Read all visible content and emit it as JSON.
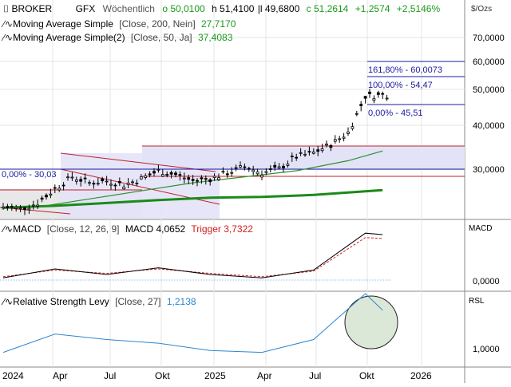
{
  "header": {
    "broker": "BROKER",
    "symbol": "GFX",
    "interval": "Wöchentlich",
    "open": "o 50,0100",
    "high": "h 51,4100",
    "low": "l 49,6800",
    "close": "c 51,2614",
    "change": "+1,2574",
    "change_pct": "+2,5146%",
    "unit": "$/Ozs"
  },
  "indicators": {
    "ma200_label": "Moving Average Simple",
    "ma200_params": "[Close, 200, Nein]",
    "ma200_value": "27,7170",
    "ma50_label": "Moving Average Simple(2)",
    "ma50_params": "[Close, 50, Ja]",
    "ma50_value": "37,4083"
  },
  "fib": {
    "l161": "161,80% - 60,0073",
    "l100": "100,00% - 54,47",
    "l0": "0,00% - 45,51",
    "left0": "0,00% - 30,03"
  },
  "macd": {
    "label": "MACD",
    "params": "[Close, 12, 26, 9]",
    "value_label": "MACD 4,0652",
    "trigger_label": "Trigger 3,7322",
    "axis_title": "MACD",
    "axis_zero": "0,0000"
  },
  "rsl": {
    "label": "Relative Strength Levy",
    "params": "[Close, 27]",
    "value": "1,2138",
    "axis_title": "RSL",
    "axis_one": "1,0000"
  },
  "colors": {
    "price": "#000000",
    "ma200": "#1a8a1a",
    "ma50": "#2f8f2f",
    "fib_line": "#1a1aa0",
    "channel": "#c0202a",
    "zone_fill": "#e3e3f7",
    "trigger": "#d02020",
    "rsl": "#2b86d0",
    "up_text": "#1a9a1a"
  },
  "chart_data": {
    "type": "line",
    "title": "GFX Wöchentlich",
    "x_ticks": [
      "2024",
      "Apr",
      "Jul",
      "Okt",
      "2025",
      "Apr",
      "Jul",
      "Okt",
      "2026"
    ],
    "price_axis_ticks": [
      "70,0000",
      "60,0000",
      "50,0000",
      "40,0000",
      "30,0000"
    ],
    "ylim_price": [
      20,
      75
    ],
    "series": [
      {
        "name": "Close",
        "x": [
          "2024-01",
          "2024-02",
          "2024-03",
          "2024-04",
          "2024-05",
          "2024-06",
          "2024-07",
          "2024-08",
          "2024-09",
          "2024-10",
          "2024-11",
          "2024-12",
          "2025-01",
          "2025-02",
          "2025-03",
          "2025-04",
          "2025-05",
          "2025-06",
          "2025-07",
          "2025-08",
          "2025-09",
          "2025-10",
          "2025-11"
        ],
        "values": [
          23.5,
          23.0,
          24.5,
          28.0,
          31.0,
          29.5,
          30.0,
          29.0,
          30.5,
          32.5,
          31.5,
          30.0,
          30.5,
          32.0,
          33.5,
          32.0,
          33.0,
          36.0,
          37.0,
          39.0,
          42.0,
          51.0,
          51.3
        ]
      },
      {
        "name": "Moving Average Simple",
        "x": [
          "2024-01",
          "2024-04",
          "2024-07",
          "2024-10",
          "2025-01",
          "2025-04",
          "2025-07",
          "2025-10",
          "2025-11"
        ],
        "values": [
          23.3,
          23.8,
          24.5,
          25.2,
          25.8,
          26.0,
          26.5,
          27.4,
          27.7
        ]
      },
      {
        "name": "Moving Average Simple(2)",
        "x": [
          "2024-03",
          "2024-06",
          "2024-09",
          "2024-12",
          "2025-03",
          "2025-06",
          "2025-09",
          "2025-11"
        ],
        "values": [
          23.5,
          25.5,
          27.5,
          29.5,
          31.0,
          32.5,
          35.0,
          37.4
        ]
      }
    ],
    "macd": {
      "x": [
        "2024-01",
        "2024-04",
        "2024-07",
        "2024-10",
        "2025-01",
        "2025-04",
        "2025-07",
        "2025-10",
        "2025-11"
      ],
      "macd": [
        0.2,
        1.0,
        0.5,
        1.1,
        0.5,
        0.2,
        0.9,
        4.2,
        4.07
      ],
      "trigger": [
        0.3,
        0.9,
        0.6,
        1.0,
        0.6,
        0.3,
        0.8,
        3.8,
        3.73
      ]
    },
    "rsl": {
      "x": [
        "2024-01",
        "2024-04",
        "2024-07",
        "2024-10",
        "2025-01",
        "2025-04",
        "2025-07",
        "2025-10",
        "2025-11"
      ],
      "values": [
        0.98,
        1.08,
        1.05,
        1.03,
        0.99,
        0.98,
        1.05,
        1.3,
        1.21
      ]
    }
  }
}
